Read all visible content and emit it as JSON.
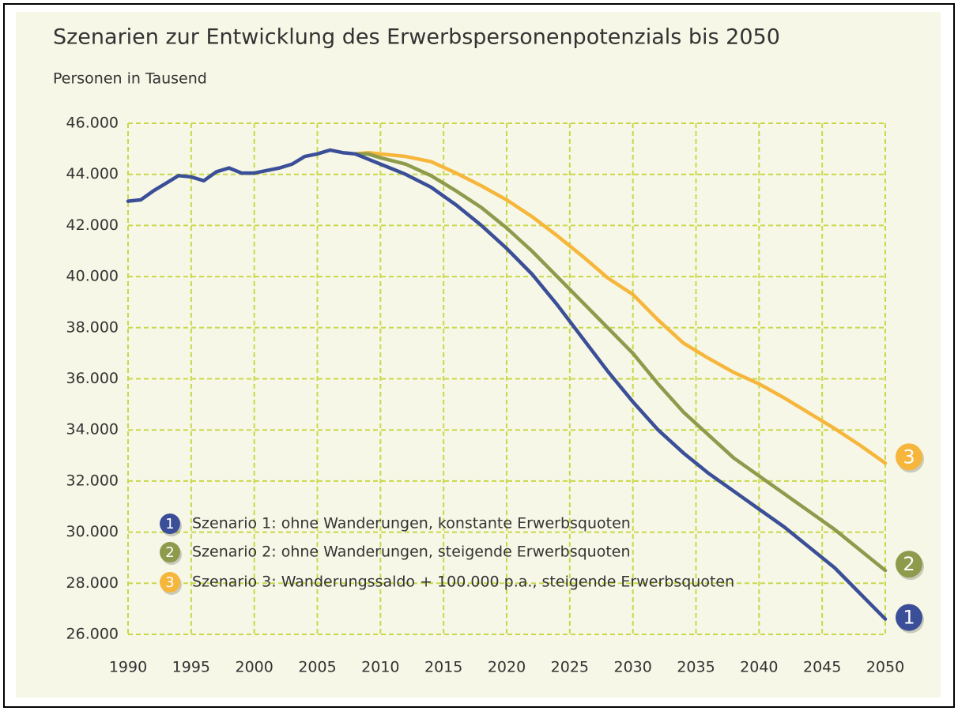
{
  "chart_data": {
    "type": "line",
    "title": "Szenarien zur Entwicklung des Erwerbspersonenpotenzials bis 2050",
    "subtitle": "Personen in Tausend",
    "x": [
      1990,
      1991,
      1992,
      1993,
      1994,
      1995,
      1996,
      1997,
      1998,
      1999,
      2000,
      2001,
      2002,
      2003,
      2004,
      2005,
      2006,
      2007,
      2008,
      2009,
      2010,
      2012,
      2014,
      2016,
      2018,
      2020,
      2022,
      2024,
      2026,
      2028,
      2030,
      2032,
      2034,
      2036,
      2038,
      2040,
      2042,
      2044,
      2046,
      2048,
      2050
    ],
    "series": [
      {
        "name": "Szenario 1: ohne Wanderungen, konstante Erwerbsquoten",
        "badge": "1",
        "color": "#3b4f98",
        "values": [
          42950,
          43000,
          43350,
          43650,
          43950,
          43900,
          43750,
          44100,
          44250,
          44050,
          44050,
          44150,
          44250,
          44400,
          44700,
          44800,
          44950,
          44850,
          44800,
          44600,
          44400,
          44000,
          43500,
          42800,
          42000,
          41100,
          40100,
          38900,
          37600,
          36300,
          35100,
          34000,
          33100,
          32300,
          31600,
          30900,
          30200,
          29400,
          28600,
          27600,
          26600
        ]
      },
      {
        "name": "Szenario 2: ohne Wanderungen, steigende Erwerbsquoten",
        "badge": "2",
        "color": "#8e9a4c",
        "values": [
          null,
          null,
          null,
          null,
          null,
          null,
          null,
          null,
          null,
          null,
          null,
          null,
          null,
          null,
          null,
          null,
          null,
          null,
          44800,
          44800,
          44650,
          44400,
          43950,
          43350,
          42700,
          41900,
          41000,
          40000,
          39000,
          38000,
          37000,
          35800,
          34700,
          33800,
          32900,
          32200,
          31500,
          30800,
          30100,
          29300,
          28500
        ]
      },
      {
        "name": "Szenario 3: Wanderungssaldo + 100.000 p.a., steigende Erwerbsquoten",
        "badge": "3",
        "color": "#f6b63c",
        "values": [
          null,
          null,
          null,
          null,
          null,
          null,
          null,
          null,
          null,
          null,
          null,
          null,
          null,
          null,
          null,
          null,
          null,
          null,
          44800,
          44850,
          44800,
          44700,
          44500,
          44050,
          43550,
          43000,
          42350,
          41600,
          40800,
          39950,
          39300,
          38300,
          37400,
          36800,
          36250,
          35800,
          35250,
          34650,
          34050,
          33400,
          32700
        ]
      }
    ],
    "xlim": [
      1990,
      2050
    ],
    "xticks": [
      1990,
      1995,
      2000,
      2005,
      2010,
      2015,
      2020,
      2025,
      2030,
      2035,
      2040,
      2045,
      2050
    ],
    "ylim": [
      26000,
      46000
    ],
    "yticks": [
      {
        "value": 26000,
        "label": "26.000"
      },
      {
        "value": 28000,
        "label": "28.000"
      },
      {
        "value": 30000,
        "label": "30.000"
      },
      {
        "value": 32000,
        "label": "32.000"
      },
      {
        "value": 34000,
        "label": "34.000"
      },
      {
        "value": 36000,
        "label": "36.000"
      },
      {
        "value": 38000,
        "label": "38.000"
      },
      {
        "value": 40000,
        "label": "40.000"
      },
      {
        "value": 42000,
        "label": "42.000"
      },
      {
        "value": 44000,
        "label": "44.000"
      },
      {
        "value": 46000,
        "label": "46.000"
      }
    ],
    "grid": true
  }
}
